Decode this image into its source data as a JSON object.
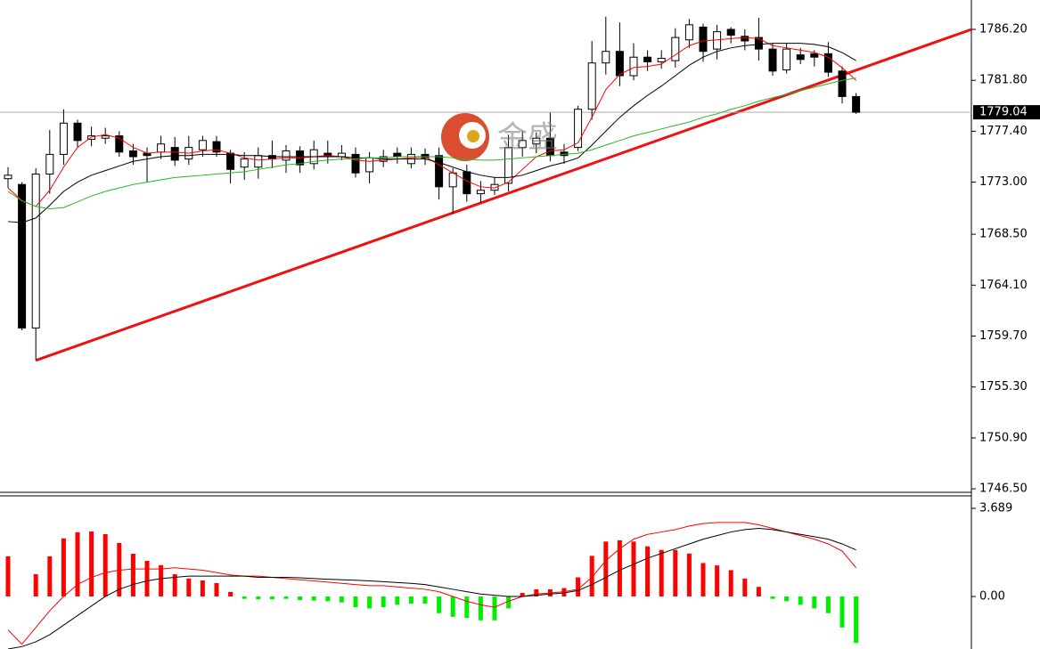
{
  "chart_data": [
    {
      "type": "candlestick",
      "ylim": [
        1746.2,
        1788.74
      ],
      "yticks": [
        {
          "value": 1786.2,
          "label": "1786.20"
        },
        {
          "value": 1781.8,
          "label": "1781.80"
        },
        {
          "value": 1777.4,
          "label": "1777.40"
        },
        {
          "value": 1773.0,
          "label": "1773.00"
        },
        {
          "value": 1768.5,
          "label": "1768.50"
        },
        {
          "value": 1764.1,
          "label": "1764.10"
        },
        {
          "value": 1759.7,
          "label": "1759.70"
        },
        {
          "value": 1755.3,
          "label": "1755.30"
        },
        {
          "value": 1750.9,
          "label": "1750.90"
        },
        {
          "value": 1746.5,
          "label": "1746.50"
        }
      ],
      "up_color": "#ffffff",
      "down_color": "#000000",
      "open": [
        1773.3,
        1772.8,
        1760.4,
        1773.7,
        1775.4,
        1778.1,
        1776.7,
        1776.8,
        1777.0,
        1775.7,
        1775.5,
        1775.6,
        1776.0,
        1775.0,
        1775.8,
        1776.5,
        1775.5,
        1774.3,
        1774.3,
        1775.3,
        1774.9,
        1775.7,
        1774.6,
        1775.5,
        1775.2,
        1775.4,
        1773.9,
        1774.8,
        1775.5,
        1774.6,
        1775.4,
        1775.3,
        1772.6,
        1773.9,
        1772.0,
        1772.3,
        1772.9,
        1776.0,
        1776.3,
        1776.8,
        1775.6,
        1776.0,
        1779.3,
        1783.3,
        1784.3,
        1782.2,
        1783.8,
        1783.4,
        1783.5,
        1785.3,
        1786.4,
        1784.5,
        1786.2,
        1785.6,
        1785.5,
        1784.5,
        1782.7,
        1784.0,
        1784.1,
        1784.1,
        1782.6,
        1780.4
      ],
      "high": [
        1774.3,
        1773.0,
        1774.2,
        1777.5,
        1779.3,
        1778.4,
        1777.8,
        1777.7,
        1777.4,
        1776.3,
        1776.0,
        1777.0,
        1776.9,
        1777.0,
        1777.0,
        1777.0,
        1775.8,
        1775.6,
        1776.0,
        1776.6,
        1776.2,
        1776.1,
        1776.6,
        1776.6,
        1776.2,
        1776.0,
        1775.6,
        1775.8,
        1776.0,
        1776.0,
        1775.9,
        1776.0,
        1774.2,
        1774.5,
        1773.1,
        1773.4,
        1777.1,
        1777.4,
        1777.3,
        1779.0,
        1776.3,
        1779.6,
        1785.2,
        1787.3,
        1786.8,
        1785.0,
        1784.4,
        1784.4,
        1786.3,
        1787.1,
        1786.7,
        1786.6,
        1786.4,
        1786.2,
        1787.2,
        1785.0,
        1785.0,
        1784.6,
        1784.4,
        1785.1,
        1783.0,
        1780.7
      ],
      "low": [
        1772.5,
        1760.2,
        1757.6,
        1772.0,
        1774.5,
        1776.0,
        1776.1,
        1776.3,
        1775.2,
        1774.5,
        1773.0,
        1775.0,
        1774.4,
        1774.5,
        1775.2,
        1775.2,
        1772.9,
        1773.2,
        1773.3,
        1774.2,
        1773.8,
        1773.8,
        1774.1,
        1774.6,
        1774.9,
        1773.4,
        1772.9,
        1774.3,
        1774.6,
        1774.2,
        1774.5,
        1771.5,
        1770.3,
        1771.3,
        1771.2,
        1771.9,
        1772.2,
        1775.2,
        1775.5,
        1774.8,
        1774.6,
        1775.7,
        1778.4,
        1782.3,
        1781.3,
        1781.8,
        1782.6,
        1782.8,
        1782.9,
        1784.6,
        1783.4,
        1783.6,
        1785.0,
        1784.4,
        1783.5,
        1782.2,
        1782.4,
        1783.2,
        1783.0,
        1782.1,
        1779.8,
        1778.9
      ],
      "close": [
        1773.6,
        1760.4,
        1773.7,
        1775.4,
        1778.1,
        1776.6,
        1777.0,
        1777.0,
        1775.6,
        1775.2,
        1775.3,
        1776.3,
        1774.9,
        1776.0,
        1776.6,
        1775.6,
        1774.1,
        1775.0,
        1775.3,
        1775.0,
        1775.7,
        1774.5,
        1775.8,
        1775.2,
        1775.5,
        1773.8,
        1775.1,
        1775.2,
        1775.2,
        1775.4,
        1775.1,
        1772.6,
        1773.8,
        1772.0,
        1772.3,
        1772.8,
        1776.0,
        1776.6,
        1776.8,
        1775.3,
        1775.3,
        1779.3,
        1783.3,
        1784.3,
        1782.2,
        1783.8,
        1783.4,
        1783.7,
        1785.5,
        1786.6,
        1784.3,
        1786.0,
        1785.7,
        1785.2,
        1784.5,
        1782.6,
        1784.5,
        1783.6,
        1783.8,
        1782.5,
        1780.4,
        1779.04
      ],
      "series": [
        {
          "color": "#ff0000",
          "values": [
            1772.5,
            1771.4,
            1770.9,
            1772.3,
            1774.3,
            1776.0,
            1776.9,
            1777.1,
            1776.8,
            1776.0,
            1775.5,
            1775.6,
            1775.6,
            1775.5,
            1775.7,
            1775.8,
            1775.5,
            1775.1,
            1774.9,
            1775.0,
            1775.1,
            1775.1,
            1775.2,
            1775.3,
            1775.2,
            1774.9,
            1774.8,
            1774.9,
            1775.0,
            1775.1,
            1775.2,
            1774.5,
            1773.8,
            1773.1,
            1772.6,
            1772.5,
            1773.0,
            1774.1,
            1775.2,
            1775.7,
            1775.8,
            1776.4,
            1778.6,
            1781.0,
            1782.3,
            1782.9,
            1783.0,
            1783.2,
            1784.0,
            1784.8,
            1785.2,
            1785.3,
            1785.4,
            1785.5,
            1785.4,
            1784.8,
            1784.6,
            1784.4,
            1784.2,
            1783.8,
            1782.9,
            1781.8
          ]
        },
        {
          "color": "#000000",
          "values": [
            1769.6,
            1769.5,
            1769.9,
            1771.0,
            1772.2,
            1773.0,
            1773.6,
            1774.0,
            1774.4,
            1774.8,
            1775.0,
            1775.2,
            1775.3,
            1775.3,
            1775.4,
            1775.4,
            1775.4,
            1775.3,
            1775.3,
            1775.2,
            1775.2,
            1775.2,
            1775.2,
            1775.2,
            1775.2,
            1775.1,
            1775.1,
            1775.0,
            1775.0,
            1775.0,
            1775.0,
            1774.7,
            1774.3,
            1773.9,
            1773.6,
            1773.4,
            1773.4,
            1773.6,
            1774.0,
            1774.4,
            1774.7,
            1775.1,
            1776.2,
            1777.4,
            1778.6,
            1779.6,
            1780.5,
            1781.3,
            1782.2,
            1783.1,
            1783.8,
            1784.3,
            1784.6,
            1784.8,
            1784.9,
            1785.0,
            1785.0,
            1785.0,
            1784.9,
            1784.7,
            1784.2,
            1783.5
          ]
        },
        {
          "color": "#22bb22",
          "values": [
            1772.2,
            1771.4,
            1770.9,
            1770.7,
            1770.8,
            1771.3,
            1771.8,
            1772.2,
            1772.5,
            1772.8,
            1773.0,
            1773.2,
            1773.4,
            1773.5,
            1773.6,
            1773.7,
            1773.8,
            1773.9,
            1774.1,
            1774.3,
            1774.5,
            1774.6,
            1774.8,
            1774.9,
            1775.0,
            1775.0,
            1775.1,
            1775.1,
            1775.2,
            1775.2,
            1775.2,
            1775.2,
            1775.1,
            1775.0,
            1774.9,
            1774.9,
            1775.0,
            1775.1,
            1775.2,
            1775.3,
            1775.4,
            1775.5,
            1775.8,
            1776.2,
            1776.6,
            1777.0,
            1777.3,
            1777.6,
            1777.9,
            1778.2,
            1778.6,
            1778.9,
            1779.3,
            1779.6,
            1780.0,
            1780.3,
            1780.6,
            1780.9,
            1781.2,
            1781.5,
            1781.8,
            1782.0
          ]
        }
      ],
      "trendline": {
        "color": "#ee1111",
        "x": [
          2,
          69.3
        ],
        "values": [
          1757.6,
          1786.2
        ]
      },
      "last_price": 1779.04,
      "watermark": "金盛"
    },
    {
      "type": "bar",
      "ylim": [
        -2.2,
        4.1
      ],
      "yticks": [
        3.689,
        {
          "value": 0,
          "label": "0.00"
        }
      ],
      "colors": {
        "positive": "#ff0000",
        "negative": "#00ee00"
      },
      "values": [
        1.68,
        0,
        0.93,
        1.68,
        2.43,
        2.69,
        2.72,
        2.61,
        2.24,
        1.79,
        1.49,
        1.31,
        0.93,
        0.75,
        0.67,
        0.56,
        0.19,
        -0.1,
        -0.12,
        -0.12,
        -0.1,
        -0.15,
        -0.17,
        -0.2,
        -0.25,
        -0.45,
        -0.5,
        -0.45,
        -0.35,
        -0.3,
        -0.3,
        -0.7,
        -0.85,
        -0.9,
        -1.0,
        -1.0,
        -0.5,
        0.15,
        0.3,
        0.3,
        0.35,
        0.8,
        1.7,
        2.3,
        2.35,
        2.3,
        2.1,
        1.95,
        1.95,
        1.8,
        1.4,
        1.3,
        1.1,
        0.75,
        0.4,
        -0.1,
        -0.2,
        -0.35,
        -0.5,
        -0.7,
        -1.3,
        -1.95
      ],
      "series": [
        {
          "color": "#ff0000",
          "values": [
            -1.4,
            -2.0,
            -1.3,
            -0.6,
            0.0,
            0.5,
            0.8,
            1.0,
            1.1,
            1.15,
            1.15,
            1.15,
            1.2,
            1.15,
            1.1,
            1.0,
            0.9,
            0.85,
            0.85,
            0.8,
            0.75,
            0.7,
            0.65,
            0.6,
            0.55,
            0.5,
            0.45,
            0.45,
            0.4,
            0.35,
            0.3,
            0.2,
            0.0,
            -0.2,
            -0.35,
            -0.45,
            -0.2,
            0.0,
            0.1,
            0.15,
            0.2,
            0.3,
            0.8,
            1.5,
            2.0,
            2.4,
            2.6,
            2.7,
            2.8,
            2.95,
            3.05,
            3.1,
            3.1,
            3.1,
            3.0,
            2.85,
            2.7,
            2.55,
            2.4,
            2.2,
            1.9,
            1.2
          ]
        },
        {
          "color": "#000000",
          "values": [
            -2.2,
            -2.1,
            -1.9,
            -1.6,
            -1.2,
            -0.8,
            -0.4,
            0.0,
            0.3,
            0.5,
            0.65,
            0.75,
            0.8,
            0.85,
            0.85,
            0.85,
            0.85,
            0.85,
            0.8,
            0.8,
            0.8,
            0.78,
            0.75,
            0.72,
            0.7,
            0.68,
            0.65,
            0.62,
            0.58,
            0.55,
            0.5,
            0.4,
            0.3,
            0.2,
            0.1,
            0.05,
            0.0,
            0.0,
            0.05,
            0.1,
            0.15,
            0.25,
            0.5,
            0.8,
            1.1,
            1.35,
            1.6,
            1.8,
            2.0,
            2.2,
            2.4,
            2.55,
            2.7,
            2.8,
            2.85,
            2.8,
            2.7,
            2.6,
            2.5,
            2.4,
            2.2,
            1.95
          ]
        }
      ]
    }
  ]
}
